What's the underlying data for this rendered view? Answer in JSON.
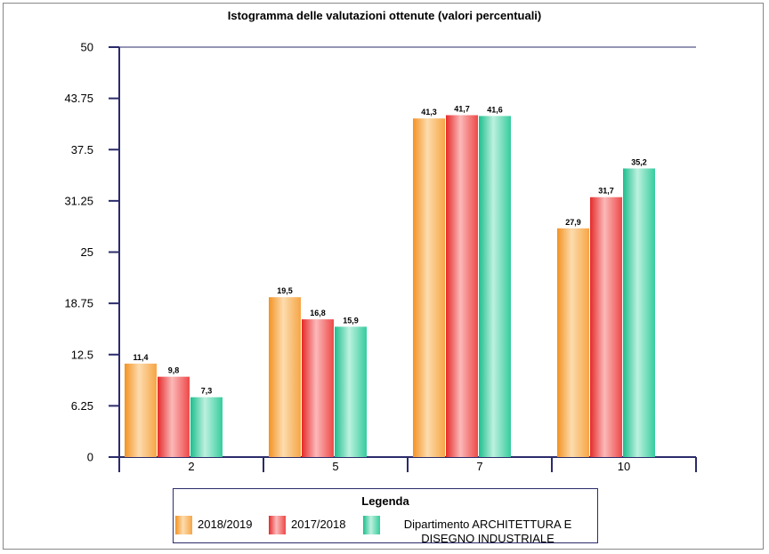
{
  "chart_data": {
    "type": "bar",
    "title": "Istogramma delle valutazioni ottenute (valori percentuali)",
    "categories": [
      "2",
      "5",
      "7",
      "10"
    ],
    "ylim": [
      0,
      50
    ],
    "yticks": [
      "0",
      "6.25",
      "12.5",
      "18.75",
      "25",
      "31.25",
      "37.5",
      "43.75",
      "50"
    ],
    "grid": false,
    "legend_position": "bottom",
    "legend_title": "Legenda",
    "series": [
      {
        "name": "2018/2019",
        "values": [
          11.4,
          19.5,
          41.3,
          27.9
        ],
        "labels": [
          "11,4",
          "19,5",
          "41,3",
          "27,9"
        ],
        "color": "#f5a035"
      },
      {
        "name": "2017/2018",
        "values": [
          9.8,
          16.8,
          41.7,
          31.7
        ],
        "labels": [
          "9,8",
          "16,8",
          "41,7",
          "31,7"
        ],
        "color": "#ec3b3b"
      },
      {
        "name": "Dipartimento ARCHITETTURA E DISEGNO INDUSTRIALE",
        "values": [
          7.3,
          15.9,
          41.6,
          35.2
        ],
        "labels": [
          "7,3",
          "15,9",
          "41,6",
          "35,2"
        ],
        "color": "#2fc99a"
      }
    ]
  }
}
